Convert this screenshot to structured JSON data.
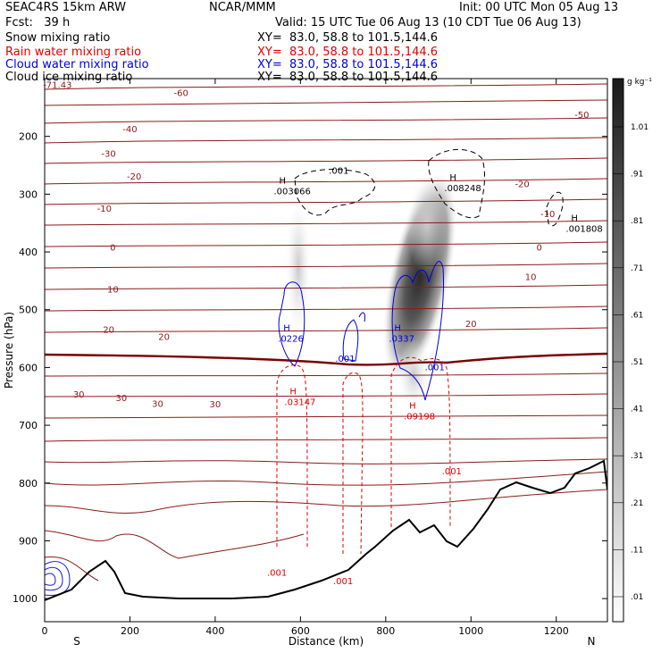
{
  "header": {
    "model": "SEAC4RS 15km ARW",
    "org": "NCAR/MMM",
    "init": "Init: 00 UTC Mon 05 Aug 13",
    "fcst": "Fcst:   39 h",
    "valid": "Valid: 15 UTC Tue 06 Aug 13 (10 CDT Tue 06 Aug 13)"
  },
  "fields": [
    {
      "label": "Snow mixing ratio",
      "xy": "XY=  83.0, 58.8 to 101.5,144.6",
      "color": "#000000"
    },
    {
      "label": "Rain water mixing ratio",
      "xy": "XY=  83.0, 58.8 to 101.5,144.6",
      "color": "#e00000"
    },
    {
      "label": "Cloud water mixing ratio",
      "xy": "XY=  83.0, 58.8 to 101.5,144.6",
      "color": "#0000dd"
    },
    {
      "label": "Cloud ice mixing ratio",
      "xy": "XY=  83.0, 58.8 to 101.5,144.6",
      "color": "#000000"
    }
  ],
  "colorbar": {
    "unit": "g kg⁻¹",
    "labels": [
      "1.01",
      ".91",
      ".81",
      ".71",
      ".61",
      ".51",
      ".41",
      ".31",
      ".21",
      ".11",
      ".01"
    ]
  },
  "chart_data": {
    "type": "contour cross-section",
    "xlabel": "Distance (km)",
    "ylabel": "Pressure (hPa)",
    "xlim": [
      0,
      1320
    ],
    "ylim": [
      1040,
      100
    ],
    "xticks": [
      0,
      200,
      400,
      600,
      800,
      1000,
      1200
    ],
    "yticks": [
      200,
      300,
      400,
      500,
      600,
      700,
      800,
      900,
      1000
    ],
    "x_end_labels": {
      "left": "S",
      "right": "N"
    },
    "temperature_contour_labels": [
      "-71.43",
      "-60",
      "-50",
      "-40",
      "-30",
      "-20",
      "-10",
      "0",
      "10",
      "20",
      "30"
    ],
    "extrema": [
      {
        "mark": "H",
        "value": ".003066",
        "x_km": 550,
        "p_hpa": 300
      },
      {
        "mark": "H",
        "value": ".008248",
        "x_km": 950,
        "p_hpa": 295
      },
      {
        "mark": "H",
        "value": ".001808",
        "x_km": 1235,
        "p_hpa": 365
      },
      {
        "mark": "H",
        "value": ".0226",
        "x_km": 560,
        "p_hpa": 555
      },
      {
        "mark": "H",
        "value": ".0337",
        "x_km": 820,
        "p_hpa": 555
      },
      {
        "mark": "H",
        "value": ".03147",
        "x_km": 575,
        "p_hpa": 665
      },
      {
        "mark": "H",
        "value": ".09198",
        "x_km": 855,
        "p_hpa": 690
      }
    ],
    "contour_value_labels": [
      {
        "value": ".001",
        "color": "black",
        "x_km": 690,
        "p_hpa": 265
      },
      {
        "value": ".001",
        "color": "blue",
        "x_km": 705,
        "p_hpa": 590
      },
      {
        "value": ".001",
        "color": "blue",
        "x_km": 915,
        "p_hpa": 605
      },
      {
        "value": ".001",
        "color": "red",
        "x_km": 955,
        "p_hpa": 785
      },
      {
        "value": ".001",
        "color": "red",
        "x_km": 545,
        "p_hpa": 960
      },
      {
        "value": ".001",
        "color": "red",
        "x_km": 700,
        "p_hpa": 975
      }
    ]
  }
}
